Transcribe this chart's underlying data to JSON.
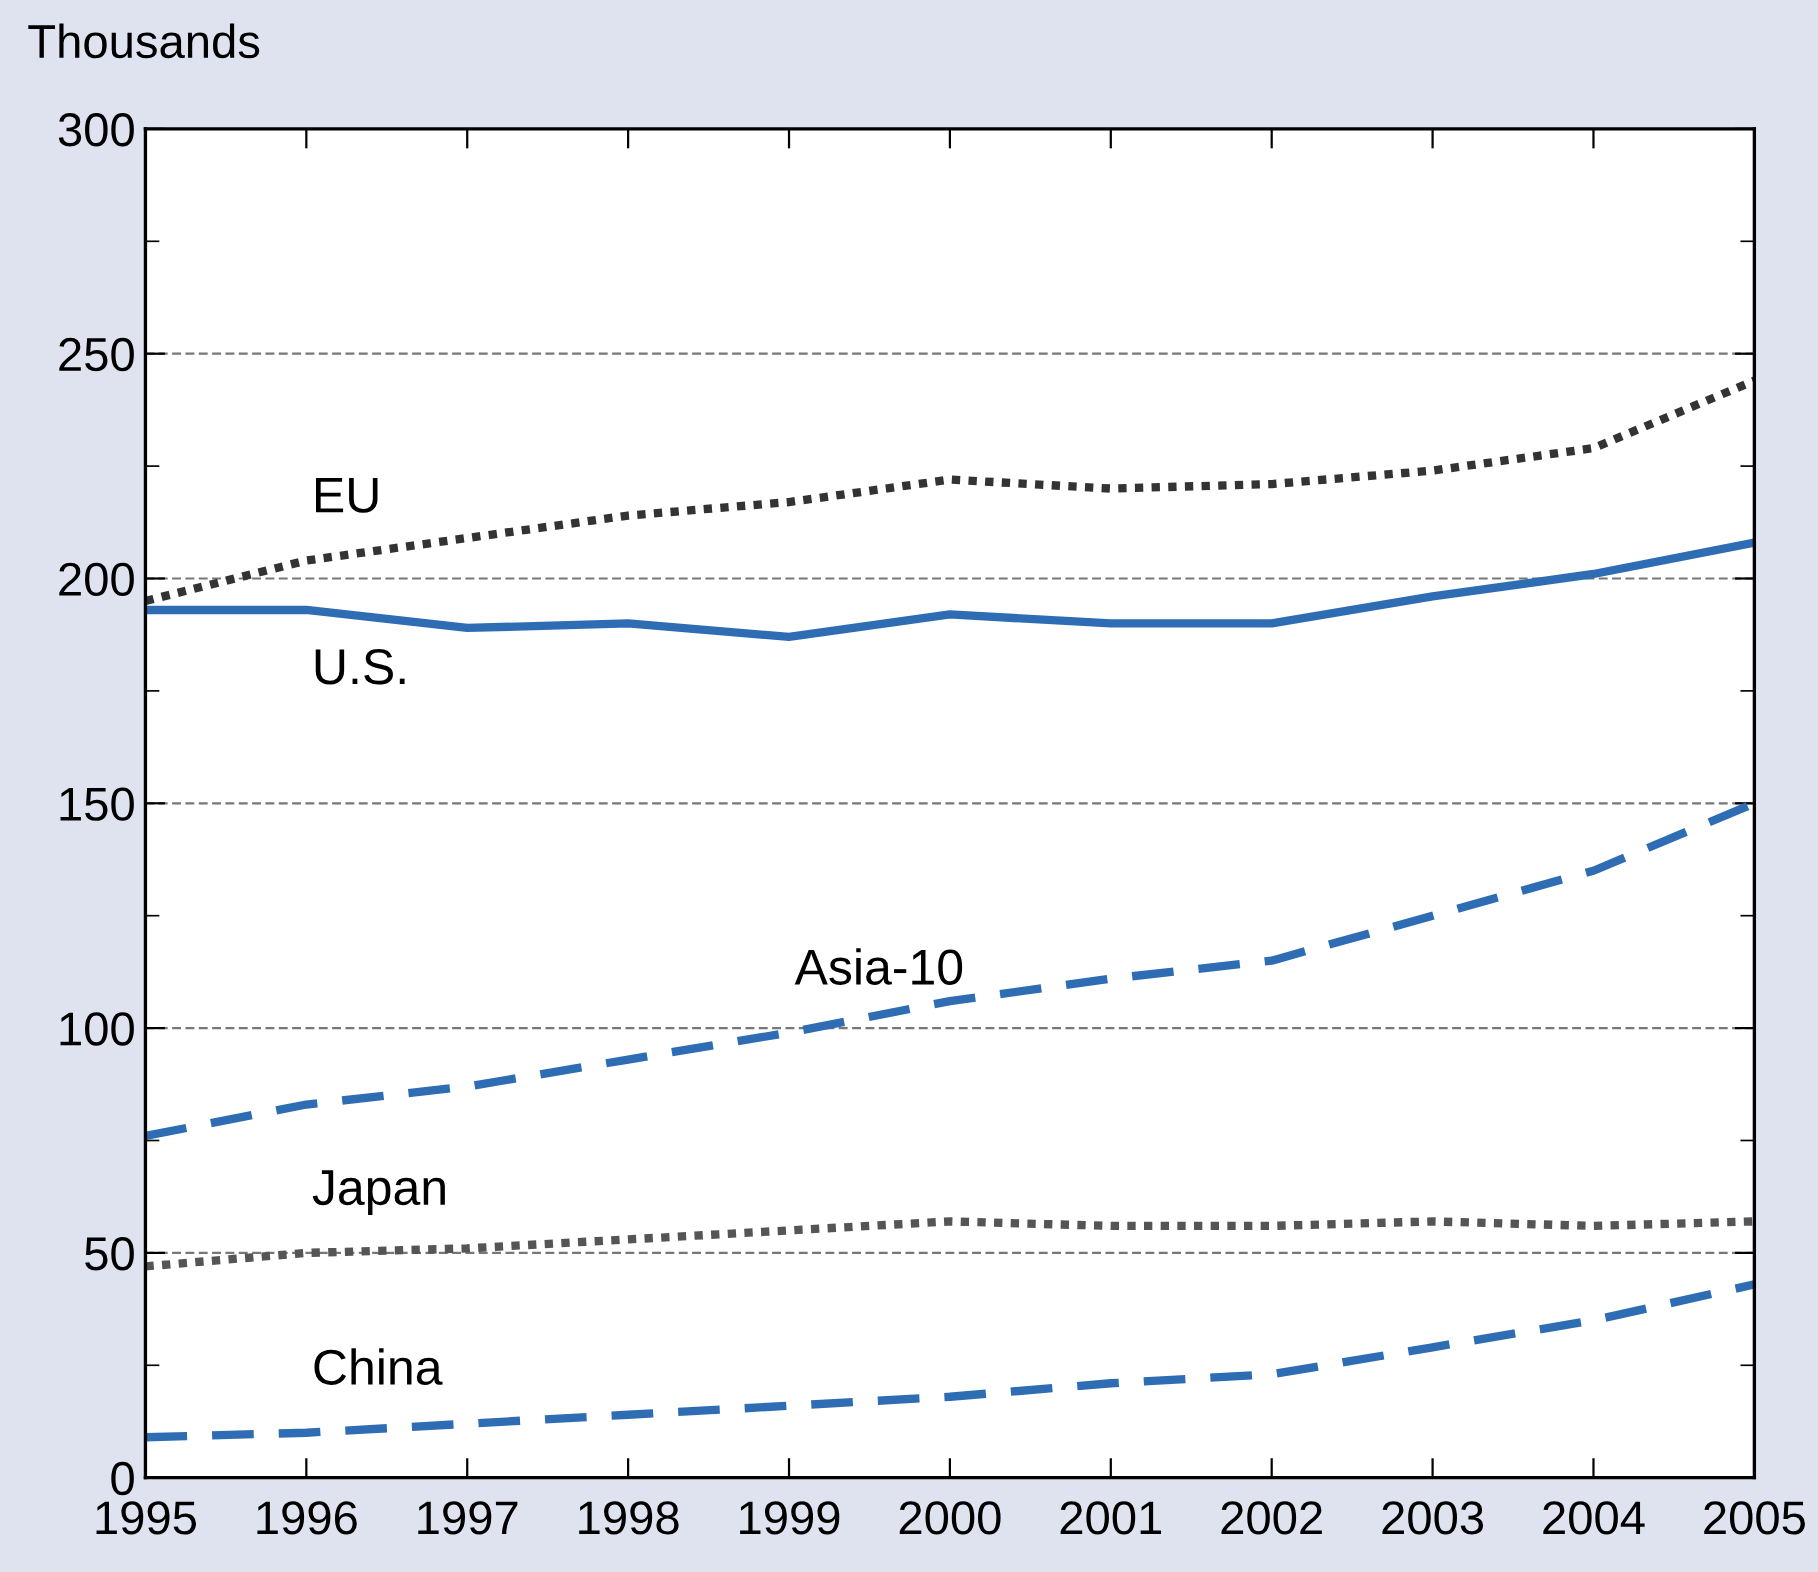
{
  "chart_data": {
    "type": "line",
    "ylabel": "Thousands",
    "x": [
      1995,
      1996,
      1997,
      1998,
      1999,
      2000,
      2001,
      2002,
      2003,
      2004,
      2005
    ],
    "xlim": [
      1995,
      2005
    ],
    "xticks": [
      1995,
      1996,
      1997,
      1998,
      1999,
      2000,
      2001,
      2002,
      2003,
      2004,
      2005
    ],
    "ylim": [
      0,
      300
    ],
    "yticks": [
      0,
      50,
      100,
      150,
      200,
      250,
      300
    ],
    "grid": "y",
    "legend": false,
    "marker": "none",
    "series": [
      {
        "name": "EU",
        "color": "#333333",
        "line_style": "dotted",
        "values": [
          195,
          204,
          209,
          214,
          217,
          222,
          220,
          221,
          224,
          229,
          244
        ]
      },
      {
        "name": "U.S.",
        "color": "#2e6db4",
        "line_style": "solid",
        "values": [
          193,
          193,
          189,
          190,
          187,
          192,
          190,
          190,
          196,
          201,
          208
        ]
      },
      {
        "name": "Asia-10",
        "color": "#2e6db4",
        "line_style": "dashed",
        "values": [
          76,
          83,
          87,
          93,
          99,
          106,
          111,
          115,
          125,
          135,
          150
        ]
      },
      {
        "name": "Japan",
        "color": "#555555",
        "line_style": "dotted",
        "values": [
          47,
          50,
          51,
          53,
          55,
          57,
          56,
          56,
          57,
          56,
          57
        ]
      },
      {
        "name": "China",
        "color": "#2e6db4",
        "line_style": "dashed",
        "values": [
          9,
          10,
          12,
          14,
          16,
          18,
          21,
          23,
          29,
          35,
          43
        ]
      }
    ]
  }
}
